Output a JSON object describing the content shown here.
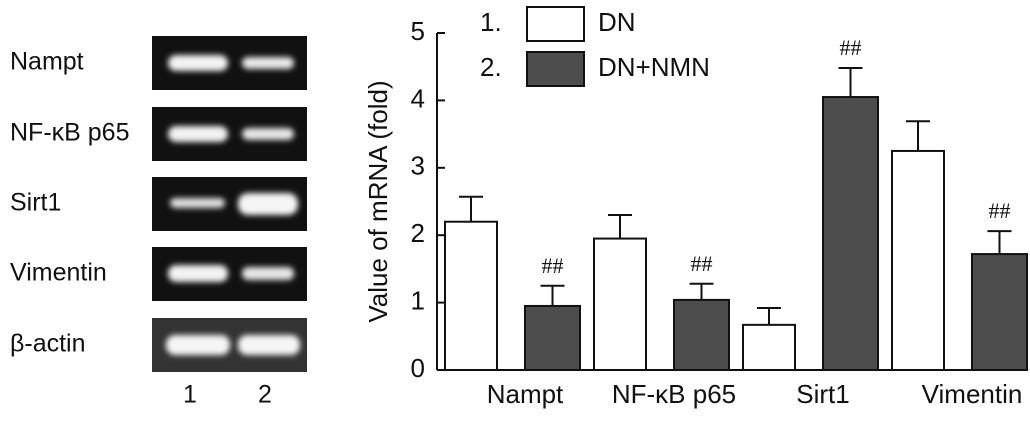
{
  "gel": {
    "rows": [
      "Nampt",
      "NF-κB p65",
      "Sirt1",
      "Vimentin",
      "β-actin"
    ],
    "lanes": [
      "1",
      "2"
    ]
  },
  "chart_data": {
    "type": "bar",
    "ylabel": "Value of mRNA (fold)",
    "categories": [
      "Nampt",
      "NF-κB p65",
      "Sirt1",
      "Vimentin"
    ],
    "series": [
      {
        "name": "DN",
        "legend_prefix": "1.",
        "color": "#ffffff",
        "values": [
          2.2,
          1.95,
          0.67,
          3.25
        ],
        "errors": [
          0.37,
          0.35,
          0.25,
          0.44
        ]
      },
      {
        "name": "DN+NMN",
        "legend_prefix": "2.",
        "color": "#4d4d4d",
        "values": [
          0.95,
          1.04,
          4.05,
          1.72
        ],
        "errors": [
          0.3,
          0.24,
          0.43,
          0.34
        ],
        "significance": [
          "##",
          "##",
          "##",
          "##"
        ]
      }
    ],
    "ylim": [
      0,
      5
    ],
    "yticks": [
      0,
      1,
      2,
      3,
      4,
      5
    ]
  }
}
